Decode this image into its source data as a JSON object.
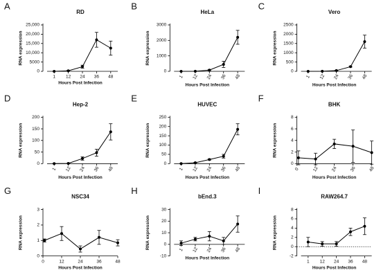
{
  "chart_data": [
    {
      "type": "line",
      "panel": "A",
      "title": "RD",
      "x_label": "Hours Post Infection",
      "y_label": "RNA expression",
      "categories": [
        "1",
        "12",
        "24",
        "36",
        "48"
      ],
      "values": [
        0,
        300,
        2500,
        17000,
        12500
      ],
      "errors": [
        0,
        200,
        800,
        4000,
        3800
      ],
      "ylim": [
        0,
        25000
      ],
      "yticks": [
        0,
        5000,
        {
          "value": 10000,
          "label": "10,000"
        },
        {
          "value": 15000,
          "label": "15,000"
        },
        {
          "value": 20000,
          "label": "20,000"
        },
        {
          "value": 25000,
          "label": "25,000"
        }
      ],
      "color": "#000000"
    },
    {
      "type": "line",
      "panel": "B",
      "title": "HeLa",
      "x_label": "Hours Post Infection",
      "y_label": "RNA expression",
      "categories": [
        "1",
        "12",
        "24",
        "36",
        "48"
      ],
      "values": [
        0,
        5,
        80,
        450,
        2200
      ],
      "errors": [
        0,
        5,
        30,
        200,
        450
      ],
      "ylim": [
        0,
        3000
      ],
      "yticks": [
        0,
        1000,
        2000,
        3000
      ],
      "xtick_rotation": -60,
      "color": "#000000"
    },
    {
      "type": "line",
      "panel": "C",
      "title": "Vero",
      "x_label": "Hours Post Infection",
      "y_label": "RNA expression",
      "categories": [
        "1",
        "12",
        "24",
        "36",
        "48"
      ],
      "values": [
        0,
        5,
        40,
        250,
        1600
      ],
      "errors": [
        0,
        3,
        15,
        30,
        350
      ],
      "ylim": [
        0,
        2500
      ],
      "yticks": [
        0,
        500,
        1000,
        1500,
        2000,
        2500
      ],
      "xtick_rotation": -60,
      "color": "#000000"
    },
    {
      "type": "line",
      "panel": "D",
      "title": "Hep-2",
      "x_label": "Hours Post Infection",
      "y_label": "RNA expression",
      "categories": [
        "1",
        "12",
        "24",
        "36",
        "48"
      ],
      "values": [
        0,
        1,
        22,
        47,
        137
      ],
      "errors": [
        0,
        0.5,
        7,
        15,
        35
      ],
      "ylim": [
        0,
        200
      ],
      "yticks": [
        0,
        50,
        100,
        150,
        200
      ],
      "xtick_rotation": -60,
      "color": "#000000"
    },
    {
      "type": "line",
      "panel": "E",
      "title": "HUVEC",
      "x_label": "Hours Post Infection",
      "y_label": "RNA expression",
      "categories": [
        "1",
        "12",
        "24",
        "36",
        "48"
      ],
      "values": [
        0,
        5,
        22,
        40,
        185
      ],
      "errors": [
        0,
        2,
        3,
        10,
        30
      ],
      "ylim": [
        0,
        250
      ],
      "yticks": [
        0,
        50,
        100,
        150,
        200,
        250
      ],
      "xtick_rotation": -60,
      "color": "#000000"
    },
    {
      "type": "line",
      "panel": "F",
      "title": "BHK",
      "x_label": "Hours Post Infection",
      "y_label": "RNA expression",
      "x": [
        1,
        12,
        24,
        36,
        48
      ],
      "xlim": [
        0,
        48
      ],
      "xticks": [
        0,
        12,
        24,
        36,
        48
      ],
      "values": [
        1.0,
        0.8,
        3.4,
        3.0,
        1.9
      ],
      "errors": [
        1.2,
        1.0,
        0.8,
        2.8,
        2.0
      ],
      "ylim": [
        0,
        8
      ],
      "yticks": [
        0,
        2,
        4,
        6,
        8
      ],
      "xtick_rotation": -60,
      "color": "#000000"
    },
    {
      "type": "line",
      "panel": "G",
      "title": "NSC34",
      "x_label": "Hours Post Infection",
      "y_label": "RNA expression",
      "x": [
        1,
        12,
        24,
        36,
        48
      ],
      "xlim": [
        0,
        48
      ],
      "xticks": [
        0,
        12,
        24,
        36,
        48
      ],
      "values": [
        1.0,
        1.45,
        0.45,
        1.2,
        0.85
      ],
      "errors": [
        0.1,
        0.45,
        0.2,
        0.45,
        0.2
      ],
      "ylim": [
        0,
        3
      ],
      "yticks": [
        0,
        1,
        2,
        3
      ],
      "color": "#000000"
    },
    {
      "type": "line",
      "panel": "H",
      "title": "bEnd.3",
      "x_label": "Hours Post Infection",
      "y_label": "RNA expression",
      "categories": [
        "1",
        "12",
        "24",
        "36",
        "48"
      ],
      "values": [
        1,
        4.5,
        7,
        3,
        17.5
      ],
      "errors": [
        2,
        1.5,
        4,
        3,
        7
      ],
      "ylim": [
        -10,
        30
      ],
      "yticks": [
        -10,
        0,
        10,
        20,
        30
      ],
      "xtick_rotation": -60,
      "color": "#000000"
    },
    {
      "type": "line",
      "panel": "I",
      "title": "RAW264.7",
      "x_label": "Hours Post Infection",
      "y_label": "RNA expression",
      "categories": [
        "1",
        "12",
        "24",
        "36",
        "48"
      ],
      "values": [
        1.0,
        0.6,
        0.6,
        3.2,
        4.4
      ],
      "errors": [
        1.0,
        0.5,
        0.5,
        0.8,
        1.8
      ],
      "ylim": [
        -2,
        8
      ],
      "yticks": [
        -2,
        0,
        2,
        4,
        6,
        8
      ],
      "hline": 0,
      "color": "#000000"
    }
  ]
}
